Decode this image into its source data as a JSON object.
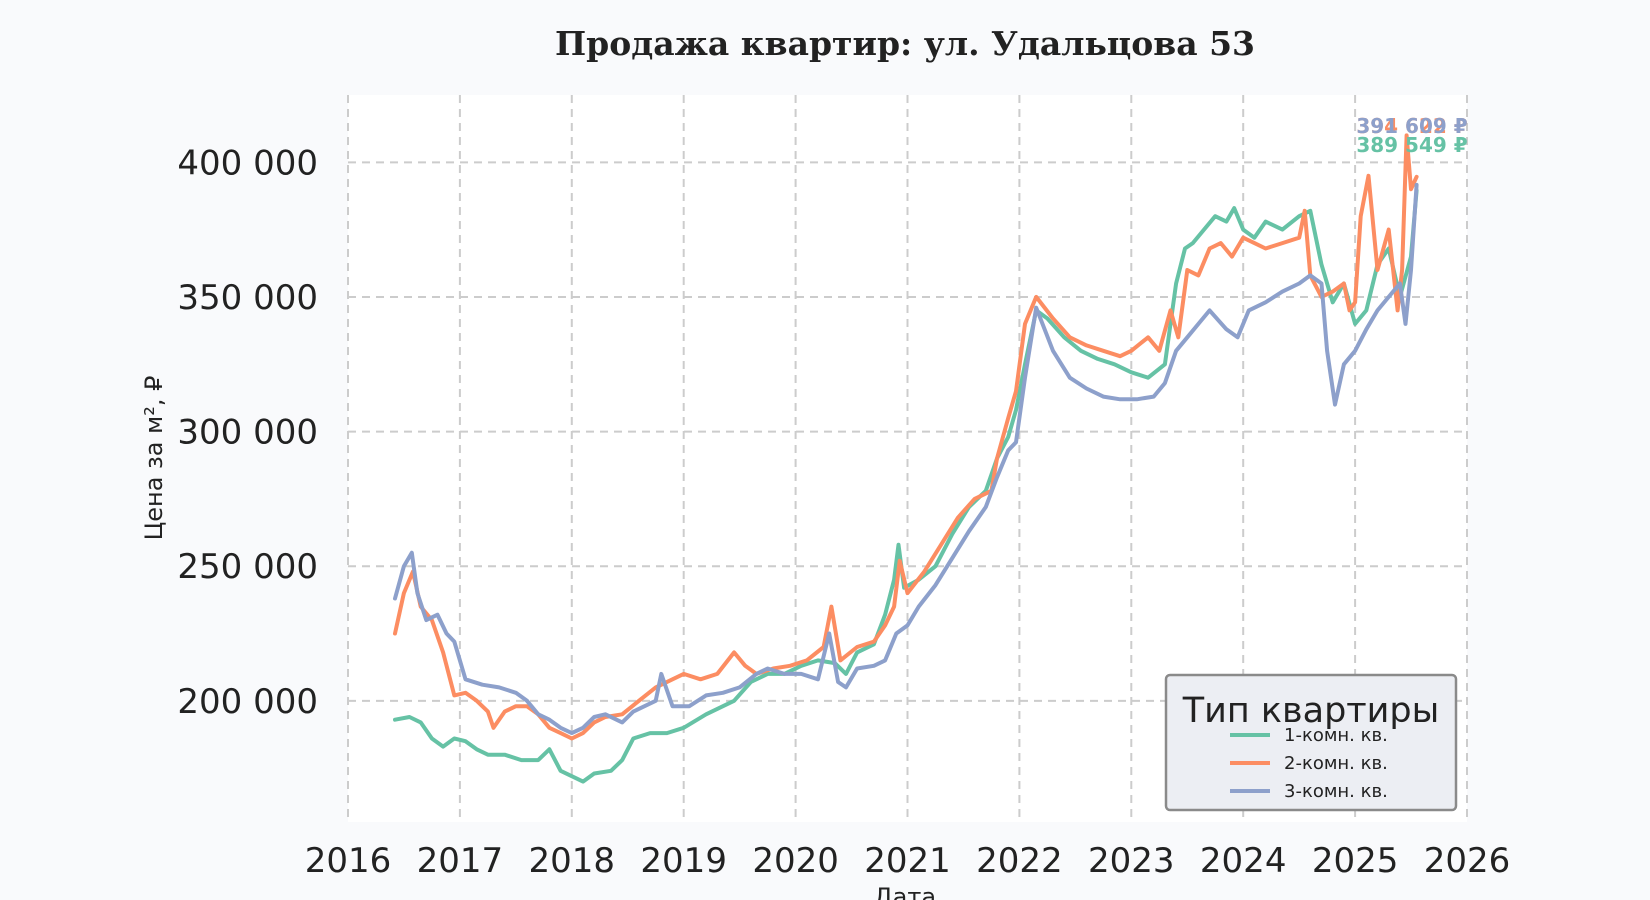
{
  "chart_data": {
    "type": "line",
    "title": "Продажа квартир: ул. Удальцова 53",
    "xlabel": "Дата",
    "ylabel": "Цена за м², ₽",
    "xlim": [
      2016.0,
      2026.0
    ],
    "ylim": [
      155000,
      425000
    ],
    "x_ticks": [
      "2016",
      "2017",
      "2018",
      "2019",
      "2020",
      "2021",
      "2022",
      "2023",
      "2024",
      "2025",
      "2026"
    ],
    "y_ticks": [
      {
        "value": 200000,
        "label": "200 000"
      },
      {
        "value": 250000,
        "label": "250 000"
      },
      {
        "value": 300000,
        "label": "300 000"
      },
      {
        "value": 350000,
        "label": "350 000"
      },
      {
        "value": 400000,
        "label": "400 000"
      }
    ],
    "grid": true,
    "legend": {
      "title": "Тип квартиры",
      "position": "bottom-right"
    },
    "series": [
      {
        "name": "1-комн. кв.",
        "color": "#66c2a5",
        "end_label": "389 549 ₽",
        "x": [
          2016.42,
          2016.55,
          2016.65,
          2016.75,
          2016.85,
          2016.95,
          2017.05,
          2017.15,
          2017.25,
          2017.4,
          2017.55,
          2017.7,
          2017.8,
          2017.9,
          2018.0,
          2018.1,
          2018.2,
          2018.35,
          2018.45,
          2018.55,
          2018.7,
          2018.85,
          2019.0,
          2019.2,
          2019.45,
          2019.6,
          2019.75,
          2019.9,
          2020.05,
          2020.2,
          2020.35,
          2020.45,
          2020.55,
          2020.7,
          2020.8,
          2020.88,
          2020.92,
          2020.97,
          2021.1,
          2021.25,
          2021.4,
          2021.55,
          2021.7,
          2021.8,
          2021.9,
          2021.97,
          2022.05,
          2022.15,
          2022.25,
          2022.4,
          2022.55,
          2022.7,
          2022.85,
          2023.0,
          2023.15,
          2023.3,
          2023.4,
          2023.48,
          2023.55,
          2023.65,
          2023.75,
          2023.85,
          2023.92,
          2024.0,
          2024.1,
          2024.2,
          2024.35,
          2024.5,
          2024.6,
          2024.7,
          2024.8,
          2024.9,
          2025.0,
          2025.1,
          2025.2,
          2025.3,
          2025.4,
          2025.5,
          2025.55
        ],
        "y": [
          193000,
          194000,
          192000,
          186000,
          183000,
          186000,
          185000,
          182000,
          180000,
          180000,
          178000,
          178000,
          182000,
          174000,
          172000,
          170000,
          173000,
          174000,
          178000,
          186000,
          188000,
          188000,
          190000,
          195000,
          200000,
          207000,
          210000,
          210000,
          213000,
          215000,
          214000,
          210000,
          218000,
          221000,
          232000,
          245000,
          258000,
          242000,
          245000,
          250000,
          262000,
          272000,
          278000,
          290000,
          298000,
          308000,
          325000,
          345000,
          342000,
          335000,
          330000,
          327000,
          325000,
          322000,
          320000,
          325000,
          355000,
          368000,
          370000,
          375000,
          380000,
          378000,
          383000,
          375000,
          372000,
          378000,
          375000,
          380000,
          382000,
          362000,
          348000,
          355000,
          340000,
          345000,
          362000,
          368000,
          350000,
          365000,
          389549
        ]
      },
      {
        "name": "2-комн. кв.",
        "color": "#fc8d62",
        "end_label": "394 622 ₽",
        "x": [
          2016.42,
          2016.5,
          2016.58,
          2016.65,
          2016.75,
          2016.85,
          2016.95,
          2017.05,
          2017.15,
          2017.25,
          2017.3,
          2017.4,
          2017.5,
          2017.6,
          2017.7,
          2017.8,
          2017.9,
          2018.0,
          2018.1,
          2018.2,
          2018.3,
          2018.45,
          2018.6,
          2018.75,
          2018.9,
          2019.0,
          2019.15,
          2019.3,
          2019.45,
          2019.55,
          2019.65,
          2019.8,
          2019.95,
          2020.1,
          2020.25,
          2020.32,
          2020.4,
          2020.55,
          2020.7,
          2020.8,
          2020.88,
          2020.93,
          2021.0,
          2021.15,
          2021.3,
          2021.45,
          2021.6,
          2021.75,
          2021.8,
          2021.9,
          2021.97,
          2022.05,
          2022.15,
          2022.3,
          2022.45,
          2022.6,
          2022.75,
          2022.9,
          2023.0,
          2023.15,
          2023.25,
          2023.35,
          2023.42,
          2023.5,
          2023.6,
          2023.7,
          2023.8,
          2023.9,
          2024.0,
          2024.1,
          2024.2,
          2024.35,
          2024.5,
          2024.55,
          2024.6,
          2024.7,
          2024.8,
          2024.9,
          2024.95,
          2025.0,
          2025.05,
          2025.12,
          2025.2,
          2025.3,
          2025.38,
          2025.42,
          2025.46,
          2025.5,
          2025.55
        ],
        "y": [
          225000,
          240000,
          248000,
          235000,
          230000,
          218000,
          202000,
          203000,
          200000,
          196000,
          190000,
          196000,
          198000,
          198000,
          195000,
          190000,
          188000,
          186000,
          188000,
          192000,
          194000,
          195000,
          200000,
          205000,
          208000,
          210000,
          208000,
          210000,
          218000,
          213000,
          210000,
          212000,
          213000,
          215000,
          220000,
          235000,
          215000,
          220000,
          222000,
          228000,
          235000,
          252000,
          240000,
          248000,
          258000,
          268000,
          275000,
          278000,
          290000,
          305000,
          315000,
          340000,
          350000,
          342000,
          335000,
          332000,
          330000,
          328000,
          330000,
          335000,
          330000,
          345000,
          335000,
          360000,
          358000,
          368000,
          370000,
          365000,
          372000,
          370000,
          368000,
          370000,
          372000,
          382000,
          358000,
          350000,
          352000,
          355000,
          345000,
          348000,
          380000,
          395000,
          360000,
          375000,
          345000,
          360000,
          410000,
          390000,
          394622
        ]
      },
      {
        "name": "3-комн. кв.",
        "color": "#8da0cb",
        "end_label": "391 609 ₽",
        "x": [
          2016.42,
          2016.5,
          2016.57,
          2016.62,
          2016.7,
          2016.8,
          2016.88,
          2016.95,
          2017.05,
          2017.2,
          2017.35,
          2017.5,
          2017.6,
          2017.7,
          2017.8,
          2017.9,
          2018.0,
          2018.1,
          2018.2,
          2018.3,
          2018.45,
          2018.55,
          2018.65,
          2018.75,
          2018.8,
          2018.9,
          2019.05,
          2019.2,
          2019.35,
          2019.5,
          2019.65,
          2019.75,
          2019.9,
          2020.05,
          2020.2,
          2020.3,
          2020.38,
          2020.45,
          2020.55,
          2020.7,
          2020.8,
          2020.9,
          2021.0,
          2021.1,
          2021.25,
          2021.4,
          2021.55,
          2021.7,
          2021.8,
          2021.9,
          2021.97,
          2022.05,
          2022.15,
          2022.3,
          2022.45,
          2022.6,
          2022.75,
          2022.9,
          2023.05,
          2023.2,
          2023.3,
          2023.4,
          2023.5,
          2023.6,
          2023.7,
          2023.85,
          2023.95,
          2024.05,
          2024.2,
          2024.35,
          2024.5,
          2024.6,
          2024.7,
          2024.75,
          2024.82,
          2024.9,
          2025.0,
          2025.1,
          2025.2,
          2025.3,
          2025.4,
          2025.45,
          2025.5,
          2025.55
        ],
        "y": [
          238000,
          250000,
          255000,
          240000,
          230000,
          232000,
          225000,
          222000,
          208000,
          206000,
          205000,
          203000,
          200000,
          195000,
          193000,
          190000,
          188000,
          190000,
          194000,
          195000,
          192000,
          196000,
          198000,
          200000,
          210000,
          198000,
          198000,
          202000,
          203000,
          205000,
          210000,
          212000,
          210000,
          210000,
          208000,
          225000,
          207000,
          205000,
          212000,
          213000,
          215000,
          225000,
          228000,
          235000,
          243000,
          253000,
          263000,
          272000,
          283000,
          293000,
          296000,
          320000,
          346000,
          330000,
          320000,
          316000,
          313000,
          312000,
          312000,
          313000,
          318000,
          330000,
          335000,
          340000,
          345000,
          338000,
          335000,
          345000,
          348000,
          352000,
          355000,
          358000,
          355000,
          330000,
          310000,
          325000,
          330000,
          338000,
          345000,
          350000,
          355000,
          340000,
          360000,
          391609
        ]
      }
    ]
  }
}
